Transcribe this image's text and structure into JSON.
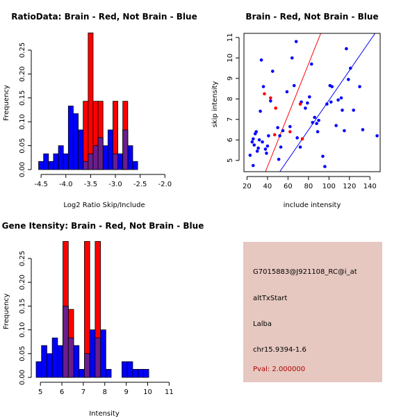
{
  "colors": {
    "red": "#ff0000",
    "blue": "#0000ff",
    "purple": "#6a1e8c",
    "info_bg": "#e6c8c0",
    "pval_text": "#b00000"
  },
  "chart_data": [
    {
      "id": "ratio-hist",
      "type": "bar",
      "title": "RatioData: Brain - Red, Not Brain - Blue",
      "xlabel": "Log2 Ratio Skip/Include",
      "ylabel": "Frequency",
      "xlim": [
        -4.6,
        -1.85
      ],
      "ylim": [
        0,
        0.285
      ],
      "xticks": [
        -4.5,
        -4.0,
        -3.5,
        -3.0,
        -2.5,
        -2.0
      ],
      "xtick_labels": [
        "-4.5",
        "-4.0",
        "-3.5",
        "-3.0",
        "-2.5",
        "-2.0"
      ],
      "yticks": [
        0,
        0.05,
        0.1,
        0.15,
        0.2,
        0.25
      ],
      "ytick_labels": [
        "0.00",
        "0.05",
        "0.10",
        "0.15",
        "0.20",
        "0.25"
      ],
      "bin_start": -4.55,
      "bin_width": 0.1,
      "series": [
        {
          "name": "Not Brain",
          "color": "blue",
          "values": [
            0.017,
            0.033,
            0.017,
            0.033,
            0.05,
            0.033,
            0.133,
            0.117,
            0.083,
            0.017,
            0.033,
            0.05,
            0.067,
            0.05,
            0.083,
            0.033,
            0.033,
            0.083,
            0.05,
            0.017
          ]
        },
        {
          "name": "Brain",
          "color": "red",
          "values": [
            0,
            0,
            0,
            0,
            0,
            0,
            0,
            0,
            0,
            0.143,
            0.286,
            0.143,
            0.143,
            0,
            0,
            0.143,
            0,
            0.143,
            0,
            0
          ]
        }
      ]
    },
    {
      "id": "scatter",
      "type": "scatter",
      "title": "Brain - Red, Not Brain - Blue",
      "xlabel": "include intensity",
      "ylabel": "skip intensity",
      "xlim": [
        17,
        150
      ],
      "ylim": [
        4.45,
        11.2
      ],
      "xticks": [
        20,
        40,
        60,
        80,
        100,
        120,
        140
      ],
      "xtick_labels": [
        "20",
        "40",
        "60",
        "80",
        "100",
        "120",
        "140"
      ],
      "yticks": [
        5,
        6,
        7,
        8,
        9,
        10,
        11
      ],
      "ytick_labels": [
        "5",
        "6",
        "7",
        "8",
        "9",
        "10",
        "11"
      ],
      "blue_points": [
        [
          23,
          5.25
        ],
        [
          25,
          5.9
        ],
        [
          26,
          6.05
        ],
        [
          26,
          4.75
        ],
        [
          27,
          5.75
        ],
        [
          28,
          6.3
        ],
        [
          29,
          6.4
        ],
        [
          30,
          5.45
        ],
        [
          31,
          5.6
        ],
        [
          32,
          6.0
        ],
        [
          33,
          7.4
        ],
        [
          34,
          9.9
        ],
        [
          35,
          5.9
        ],
        [
          36,
          8.6
        ],
        [
          38,
          5.55
        ],
        [
          39,
          5.35
        ],
        [
          40,
          5.7
        ],
        [
          41,
          6.2
        ],
        [
          43,
          7.9
        ],
        [
          45,
          9.35
        ],
        [
          50,
          6.6
        ],
        [
          51,
          5.05
        ],
        [
          52,
          6.2
        ],
        [
          53,
          5.65
        ],
        [
          55,
          6.45
        ],
        [
          59,
          8.35
        ],
        [
          62,
          6.65
        ],
        [
          64,
          10.0
        ],
        [
          66,
          8.65
        ],
        [
          68,
          10.8
        ],
        [
          69,
          6.1
        ],
        [
          72,
          5.65
        ],
        [
          73,
          7.85
        ],
        [
          77,
          7.55
        ],
        [
          79,
          7.8
        ],
        [
          81,
          8.1
        ],
        [
          83,
          9.7
        ],
        [
          84,
          6.85
        ],
        [
          86,
          7.1
        ],
        [
          88,
          6.8
        ],
        [
          89,
          6.4
        ],
        [
          90,
          6.95
        ],
        [
          94,
          5.2
        ],
        [
          96,
          4.7
        ],
        [
          98,
          7.75
        ],
        [
          101,
          8.65
        ],
        [
          102,
          7.85
        ],
        [
          103,
          8.6
        ],
        [
          107,
          6.7
        ],
        [
          109,
          7.95
        ],
        [
          112,
          8.05
        ],
        [
          113,
          7.45
        ],
        [
          115,
          6.45
        ],
        [
          117,
          10.45
        ],
        [
          119,
          8.95
        ],
        [
          121,
          9.5
        ],
        [
          124,
          7.45
        ],
        [
          130,
          8.6
        ],
        [
          133,
          6.5
        ],
        [
          147,
          6.2
        ]
      ],
      "red_points": [
        [
          37,
          8.25
        ],
        [
          43,
          8.05
        ],
        [
          47,
          6.25
        ],
        [
          48,
          7.55
        ],
        [
          62,
          6.4
        ],
        [
          72,
          7.75
        ],
        [
          74,
          6.05
        ]
      ],
      "lines": [
        {
          "color": "red",
          "x1": 38,
          "y1": 4.45,
          "x2": 92,
          "y2": 11.2
        },
        {
          "color": "blue",
          "x1": 52,
          "y1": 4.45,
          "x2": 145,
          "y2": 11.2
        }
      ]
    },
    {
      "id": "intensity-hist",
      "type": "bar",
      "title": "Gene Itensity: Brain - Red, Not Brain - Blue",
      "xlabel": "Intensity",
      "ylabel": "Frequency",
      "xlim": [
        4.8,
        11.15
      ],
      "ylim": [
        0,
        0.285
      ],
      "xticks": [
        5,
        6,
        7,
        8,
        9,
        10,
        11
      ],
      "xtick_labels": [
        "5",
        "6",
        "7",
        "8",
        "9",
        "10",
        "11"
      ],
      "yticks": [
        0,
        0.05,
        0.1,
        0.15,
        0.2,
        0.25
      ],
      "ytick_labels": [
        "0.00",
        "0.05",
        "0.10",
        "0.15",
        "0.20",
        "0.25"
      ],
      "bin_start": 4.8,
      "bin_width": 0.25,
      "series": [
        {
          "name": "Not Brain",
          "color": "blue",
          "values": [
            0.033,
            0.067,
            0.05,
            0.083,
            0.067,
            0.15,
            0.083,
            0.067,
            0.017,
            0.05,
            0.1,
            0.083,
            0.1,
            0.017,
            0,
            0,
            0.033,
            0.033,
            0.017,
            0.017,
            0.017
          ]
        },
        {
          "name": "Brain",
          "color": "red",
          "values": [
            0,
            0,
            0,
            0,
            0,
            0.286,
            0.143,
            0,
            0,
            0.286,
            0,
            0.286,
            0,
            0,
            0,
            0,
            0,
            0,
            0,
            0,
            0
          ]
        }
      ]
    }
  ],
  "info": {
    "probe_id": "G7015883@J921108_RC@i_at",
    "event_type": "altTxStart",
    "gene": "Lalba",
    "location": "chr15.9394-1.6",
    "pval": "Pval: 2.000000"
  }
}
